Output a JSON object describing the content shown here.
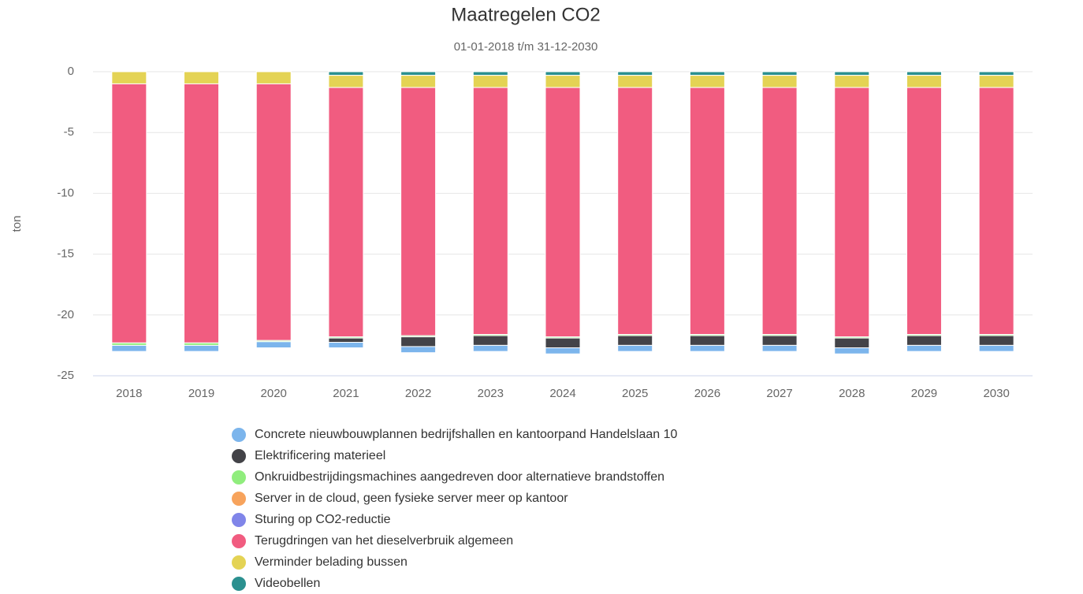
{
  "chart_data": {
    "type": "bar",
    "stacked": true,
    "title": "Maatregelen CO2",
    "subtitle": "01-01-2018 t/m 31-12-2030",
    "y_label": "ton",
    "categories": [
      "2018",
      "2019",
      "2020",
      "2021",
      "2022",
      "2023",
      "2024",
      "2025",
      "2026",
      "2027",
      "2028",
      "2029",
      "2030"
    ],
    "ylim": [
      -25,
      0
    ],
    "yticks": [
      0,
      -5,
      -10,
      -15,
      -20,
      -25
    ],
    "grid": true,
    "legend": "bottom",
    "series": [
      {
        "name": "Concrete nieuwbouwplannen bedrijfshallen en kantoorpand Handelslaan 10",
        "color": "#7cb5ec",
        "values": [
          -0.5,
          -0.5,
          -0.5,
          -0.45,
          -0.5,
          -0.5,
          -0.5,
          -0.5,
          -0.5,
          -0.5,
          -0.5,
          -0.5,
          -0.5
        ]
      },
      {
        "name": "Elektrificering materieel",
        "color": "#434348",
        "values": [
          0,
          0,
          0,
          -0.35,
          -0.8,
          -0.8,
          -0.8,
          -0.8,
          -0.8,
          -0.8,
          -0.8,
          -0.8,
          -0.8
        ]
      },
      {
        "name": "Onkruidbestrijdingsmachines aangedreven door alternatieve brandstoffen",
        "color": "#90ed7d",
        "values": [
          -0.2,
          -0.2,
          -0.1,
          -0.1,
          -0.1,
          -0.1,
          -0.1,
          -0.1,
          -0.1,
          -0.1,
          -0.1,
          -0.1,
          -0.1
        ]
      },
      {
        "name": "Server in de cloud, geen fysieke server meer op kantoor",
        "color": "#f7a35c",
        "values": [
          0,
          0,
          0,
          0,
          0,
          0,
          0,
          0,
          0,
          0,
          0,
          0,
          0
        ]
      },
      {
        "name": "Sturing op CO2-reductie",
        "color": "#8085e9",
        "values": [
          0,
          0,
          0,
          0,
          0,
          0,
          0,
          0,
          0,
          0,
          0,
          0,
          0
        ]
      },
      {
        "name": "Terugdringen van het dieselverbruik algemeen",
        "color": "#f15c80",
        "values": [
          -21.3,
          -21.3,
          -21.1,
          -20.5,
          -20.4,
          -20.3,
          -20.5,
          -20.3,
          -20.3,
          -20.3,
          -20.5,
          -20.3,
          -20.3
        ]
      },
      {
        "name": "Verminder belading bussen",
        "color": "#e4d354",
        "values": [
          -1.0,
          -1.0,
          -1.0,
          -1.0,
          -1.0,
          -1.0,
          -1.0,
          -1.0,
          -1.0,
          -1.0,
          -1.0,
          -1.0,
          -1.0
        ]
      },
      {
        "name": "Videobellen",
        "color": "#2b908f",
        "values": [
          0,
          0,
          0,
          -0.3,
          -0.3,
          -0.3,
          -0.3,
          -0.3,
          -0.3,
          -0.3,
          -0.3,
          -0.3,
          -0.3
        ]
      }
    ]
  }
}
